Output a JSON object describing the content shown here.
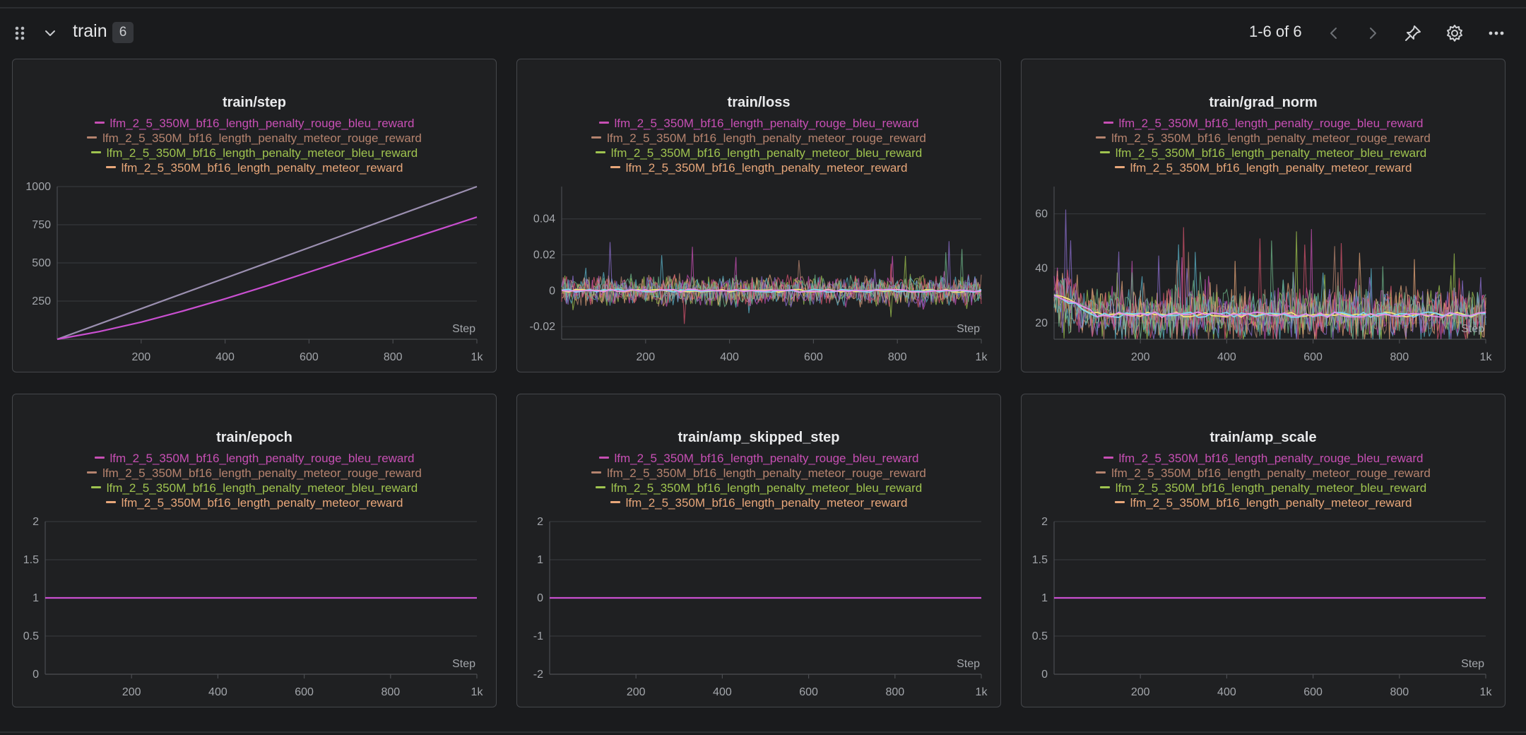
{
  "section": {
    "title": "train",
    "count": "6",
    "pager": "1-6 of 6",
    "icons": [
      "drag-handle-icon",
      "chevron-down-icon",
      "chevron-left-icon",
      "chevron-right-icon",
      "pin-icon",
      "gear-icon",
      "more-horizontal-icon"
    ]
  },
  "legend": [
    {
      "name": "lfm_2_5_350M_bf16_length_penalty_rouge_bleu_reward",
      "color": "#c74fb4"
    },
    {
      "name": "lfm_2_5_350M_bf16_length_penalty_meteor_rouge_reward",
      "color": "#b5836e"
    },
    {
      "name": "lfm_2_5_350M_bf16_length_penalty_meteor_bleu_reward",
      "color": "#9fc34f"
    },
    {
      "name": "lfm_2_5_350M_bf16_length_penalty_meteor_reward",
      "color": "#e8a77a"
    }
  ],
  "chart_data": [
    {
      "type": "line",
      "title": "train/step",
      "xlabel": "Step",
      "x_ticks": [
        "200",
        "400",
        "600",
        "800",
        "1k"
      ],
      "y_ticks": [
        "250",
        "500",
        "750",
        "1000"
      ],
      "xlim": [
        0,
        1000
      ],
      "ylim": [
        0,
        1000
      ],
      "series": [
        {
          "name": "lfm_2_5_350M_bf16_length_penalty_meteor_rouge_reward",
          "color": "#9b8fb0",
          "x": [
            0,
            1000
          ],
          "y": [
            0,
            1000
          ]
        },
        {
          "name": "lfm_2_5_350M_bf16_length_penalty_rouge_bleu_reward",
          "color": "#c94fd0",
          "x": [
            0,
            100,
            200,
            300,
            400,
            500,
            600,
            700,
            800,
            900,
            1000
          ],
          "y": [
            0,
            50,
            112,
            185,
            265,
            350,
            440,
            530,
            620,
            710,
            800
          ]
        }
      ]
    },
    {
      "type": "line",
      "title": "train/loss",
      "xlabel": "Step",
      "x_ticks": [
        "200",
        "400",
        "600",
        "800",
        "1k"
      ],
      "y_ticks": [
        "-0.02",
        "0",
        "0.02",
        "0.04"
      ],
      "xlim": [
        0,
        1000
      ],
      "ylim": [
        -0.027,
        0.058
      ],
      "noise": {
        "center": 0,
        "amplitude": 0.007
      }
    },
    {
      "type": "line",
      "title": "train/grad_norm",
      "xlabel": "Step",
      "x_ticks": [
        "200",
        "400",
        "600",
        "800",
        "1k"
      ],
      "y_ticks": [
        "20",
        "40",
        "60"
      ],
      "xlim": [
        0,
        1000
      ],
      "ylim": [
        14,
        70
      ],
      "noise": {
        "center": 23,
        "amplitude": 8
      }
    },
    {
      "type": "line",
      "title": "train/epoch",
      "xlabel": "Step",
      "x_ticks": [
        "200",
        "400",
        "600",
        "800",
        "1k"
      ],
      "y_ticks": [
        "0",
        "0.5",
        "1",
        "1.5",
        "2"
      ],
      "xlim": [
        0,
        1000
      ],
      "ylim": [
        0,
        2
      ],
      "series": [
        {
          "color": "#c94fd0",
          "x": [
            0,
            1000
          ],
          "y": [
            1,
            1
          ]
        }
      ]
    },
    {
      "type": "line",
      "title": "train/amp_skipped_step",
      "xlabel": "Step",
      "x_ticks": [
        "200",
        "400",
        "600",
        "800",
        "1k"
      ],
      "y_ticks": [
        "-2",
        "-1",
        "0",
        "1",
        "2"
      ],
      "xlim": [
        0,
        1000
      ],
      "ylim": [
        -2,
        2
      ],
      "series": [
        {
          "color": "#c94fd0",
          "x": [
            0,
            1000
          ],
          "y": [
            0,
            0
          ]
        }
      ]
    },
    {
      "type": "line",
      "title": "train/amp_scale",
      "xlabel": "Step",
      "x_ticks": [
        "200",
        "400",
        "600",
        "800",
        "1k"
      ],
      "y_ticks": [
        "0",
        "0.5",
        "1",
        "1.5",
        "2"
      ],
      "xlim": [
        0,
        1000
      ],
      "ylim": [
        0,
        2
      ],
      "series": [
        {
          "color": "#c94fd0",
          "x": [
            0,
            1000
          ],
          "y": [
            1,
            1
          ]
        }
      ]
    }
  ]
}
